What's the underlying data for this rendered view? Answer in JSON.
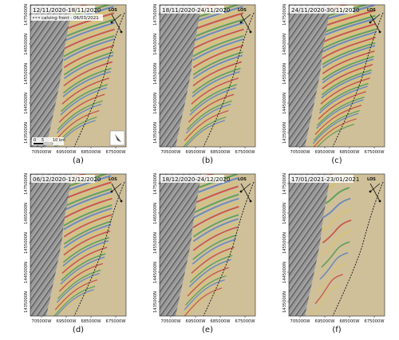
{
  "figure": {
    "panels": [
      {
        "id": "a",
        "date_range": "12/11/2020-18/11/2020",
        "caption": "(a)",
        "fringe_density": 1.0,
        "fringe_extent": 0.55,
        "has_legend": true,
        "has_scalebar": true,
        "has_north_arrow": true
      },
      {
        "id": "b",
        "date_range": "18/11/2020-24/11/2020",
        "caption": "(b)",
        "fringe_density": 1.0,
        "fringe_extent": 0.55,
        "has_legend": false,
        "has_scalebar": false,
        "has_north_arrow": false
      },
      {
        "id": "c",
        "date_range": "24/11/2020-30/11/2020",
        "caption": "(c)",
        "fringe_density": 1.2,
        "fringe_extent": 0.6,
        "has_legend": false,
        "has_scalebar": false,
        "has_north_arrow": false
      },
      {
        "id": "d",
        "date_range": "06/12/2020-12/12/2020",
        "caption": "(d)",
        "fringe_density": 1.0,
        "fringe_extent": 0.5,
        "has_legend": false,
        "has_scalebar": false,
        "has_north_arrow": false
      },
      {
        "id": "e",
        "date_range": "18/12/2020-24/12/2020",
        "caption": "(e)",
        "fringe_density": 0.8,
        "fringe_extent": 0.45,
        "has_legend": false,
        "has_scalebar": false,
        "has_north_arrow": false
      },
      {
        "id": "f",
        "date_range": "17/01/2021-23/01/2021",
        "caption": "(f)",
        "fringe_density": 0.3,
        "fringe_extent": 0.1,
        "has_legend": false,
        "has_scalebar": false,
        "has_north_arrow": false
      }
    ],
    "y_ticks": [
      "1475000N",
      "1465000N",
      "1455000N",
      "1445000N",
      "1435000N"
    ],
    "x_ticks": [
      "705000W",
      "695000W",
      "685000W",
      "675000W"
    ],
    "legend": {
      "label": "calving front - 06/03/2021"
    },
    "los_label": "LOS",
    "scalebar": {
      "labels": [
        "0",
        "5",
        "10 km"
      ]
    },
    "colors": {
      "terrain_dark": "#6b6b6b",
      "terrain_light": "#a8a8a8",
      "ice_background": "#cfc09a",
      "fringe_red": "#c8453a",
      "fringe_green": "#4f9a4c",
      "fringe_yellow": "#d9c26a",
      "fringe_blue": "#5b7fc0",
      "calving_front": "#222222"
    }
  }
}
